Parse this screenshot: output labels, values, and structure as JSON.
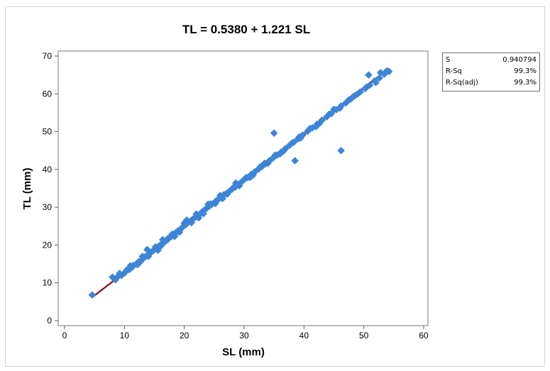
{
  "chart_data": {
    "type": "scatter",
    "title": "TL = 0.5380 + 1.221 SL",
    "xlabel": "SL (mm)",
    "ylabel": "TL (mm)",
    "xlim": [
      0,
      60
    ],
    "ylim": [
      0,
      70
    ],
    "xticks": [
      0,
      10,
      20,
      30,
      40,
      50,
      60
    ],
    "yticks": [
      0,
      10,
      20,
      30,
      40,
      50,
      60,
      70
    ],
    "grid": false,
    "fit_line": {
      "intercept": 0.538,
      "slope": 1.221,
      "x_range": [
        4.6,
        54.2
      ],
      "color": "#8b1a1a"
    },
    "point_color": "#3d85d6",
    "points": [
      [
        4.6,
        6.8
      ],
      [
        8.0,
        11.5
      ],
      [
        8.5,
        10.8
      ],
      [
        9.0,
        11.8
      ],
      [
        9.5,
        12.0
      ],
      [
        10.0,
        12.6
      ],
      [
        10.4,
        13.4
      ],
      [
        10.8,
        13.5
      ],
      [
        11.2,
        14.0
      ],
      [
        11.5,
        14.6
      ],
      [
        12.0,
        15.0
      ],
      [
        12.4,
        15.6
      ],
      [
        12.8,
        15.8
      ],
      [
        13.1,
        16.5
      ],
      [
        13.5,
        16.9
      ],
      [
        13.9,
        17.3
      ],
      [
        14.3,
        17.8
      ],
      [
        14.7,
        18.4
      ],
      [
        15.0,
        18.8
      ],
      [
        15.4,
        19.1
      ],
      [
        15.8,
        19.8
      ],
      [
        16.2,
        20.3
      ],
      [
        16.6,
        20.6
      ],
      [
        17.0,
        21.3
      ],
      [
        17.4,
        21.9
      ],
      [
        17.8,
        22.2
      ],
      [
        18.2,
        22.8
      ],
      [
        18.6,
        23.3
      ],
      [
        19.0,
        23.8
      ],
      [
        19.4,
        24.2
      ],
      [
        19.8,
        24.9
      ],
      [
        20.2,
        25.3
      ],
      [
        20.6,
        25.9
      ],
      [
        21.0,
        26.3
      ],
      [
        21.4,
        26.8
      ],
      [
        21.8,
        27.3
      ],
      [
        22.2,
        27.8
      ],
      [
        22.6,
        28.2
      ],
      [
        23.0,
        28.8
      ],
      [
        23.4,
        29.3
      ],
      [
        23.8,
        29.8
      ],
      [
        24.2,
        30.3
      ],
      [
        24.6,
        30.8
      ],
      [
        25.0,
        31.2
      ],
      [
        25.4,
        31.8
      ],
      [
        25.8,
        32.2
      ],
      [
        26.2,
        32.8
      ],
      [
        26.6,
        33.3
      ],
      [
        27.0,
        33.6
      ],
      [
        27.5,
        34.2
      ],
      [
        28.0,
        34.8
      ],
      [
        28.5,
        35.3
      ],
      [
        29.0,
        36.0
      ],
      [
        29.5,
        36.6
      ],
      [
        30.0,
        37.3
      ],
      [
        30.6,
        37.9
      ],
      [
        31.2,
        38.7
      ],
      [
        31.8,
        39.4
      ],
      [
        32.4,
        40.1
      ],
      [
        33.0,
        40.8
      ],
      [
        33.6,
        41.5
      ],
      [
        34.2,
        42.3
      ],
      [
        34.8,
        43.0
      ],
      [
        35.5,
        43.8
      ],
      [
        36.2,
        44.6
      ],
      [
        36.9,
        45.5
      ],
      [
        37.6,
        46.4
      ],
      [
        38.3,
        47.2
      ],
      [
        39.0,
        48.1
      ],
      [
        39.8,
        49.1
      ],
      [
        40.6,
        50.1
      ],
      [
        41.4,
        51.0
      ],
      [
        42.2,
        52.0
      ],
      [
        43.0,
        53.0
      ],
      [
        43.8,
        53.9
      ],
      [
        44.6,
        54.8
      ],
      [
        45.4,
        55.8
      ],
      [
        46.2,
        56.8
      ],
      [
        47.0,
        57.6
      ],
      [
        47.8,
        58.6
      ],
      [
        48.6,
        59.6
      ],
      [
        49.4,
        60.5
      ],
      [
        50.2,
        61.4
      ],
      [
        51.0,
        62.3
      ],
      [
        51.8,
        63.4
      ],
      [
        52.6,
        64.2
      ],
      [
        53.4,
        65.2
      ],
      [
        54.2,
        65.9
      ],
      [
        9.2,
        12.5
      ],
      [
        11.0,
        14.5
      ],
      [
        12.2,
        14.8
      ],
      [
        13.0,
        17.0
      ],
      [
        14.0,
        17.0
      ],
      [
        15.2,
        19.5
      ],
      [
        16.0,
        19.6
      ],
      [
        17.2,
        21.4
      ],
      [
        18.0,
        22.9
      ],
      [
        19.2,
        23.4
      ],
      [
        20.0,
        25.8
      ],
      [
        21.2,
        25.9
      ],
      [
        22.0,
        28.2
      ],
      [
        23.2,
        28.3
      ],
      [
        24.0,
        30.8
      ],
      [
        25.2,
        31.0
      ],
      [
        26.0,
        33.1
      ],
      [
        27.2,
        33.5
      ],
      [
        28.2,
        35.2
      ],
      [
        29.2,
        35.7
      ],
      [
        30.3,
        37.8
      ],
      [
        31.5,
        38.5
      ],
      [
        32.7,
        40.7
      ],
      [
        34.0,
        41.7
      ],
      [
        35.2,
        43.8
      ],
      [
        36.6,
        44.9
      ],
      [
        38.0,
        47.0
      ],
      [
        39.4,
        48.3
      ],
      [
        41.0,
        50.8
      ],
      [
        42.6,
        52.2
      ],
      [
        44.2,
        54.6
      ],
      [
        46.0,
        56.2
      ],
      [
        47.5,
        58.4
      ],
      [
        49.0,
        60.0
      ],
      [
        50.5,
        61.8
      ],
      [
        52.0,
        63.0
      ],
      [
        35.0,
        49.6
      ],
      [
        38.5,
        42.3
      ],
      [
        46.2,
        45.0
      ],
      [
        50.8,
        65.0
      ],
      [
        52.8,
        65.6
      ],
      [
        13.8,
        18.8
      ],
      [
        15.6,
        18.6
      ],
      [
        16.4,
        21.4
      ],
      [
        18.4,
        22.3
      ],
      [
        20.4,
        26.6
      ],
      [
        22.4,
        27.2
      ],
      [
        24.4,
        30.9
      ],
      [
        26.4,
        32.3
      ],
      [
        28.6,
        36.4
      ],
      [
        31.0,
        37.9
      ],
      [
        33.4,
        41.6
      ],
      [
        36.0,
        44.1
      ],
      [
        39.2,
        48.6
      ],
      [
        42.0,
        51.3
      ],
      [
        45.0,
        55.9
      ],
      [
        48.2,
        59.2
      ],
      [
        53.8,
        66.0
      ]
    ]
  },
  "stats_box": {
    "rows": [
      {
        "label": "S",
        "value": "0.940794"
      },
      {
        "label": "R-Sq",
        "value": "99.3%"
      },
      {
        "label": "R-Sq(adj)",
        "value": "99.3%"
      }
    ]
  }
}
